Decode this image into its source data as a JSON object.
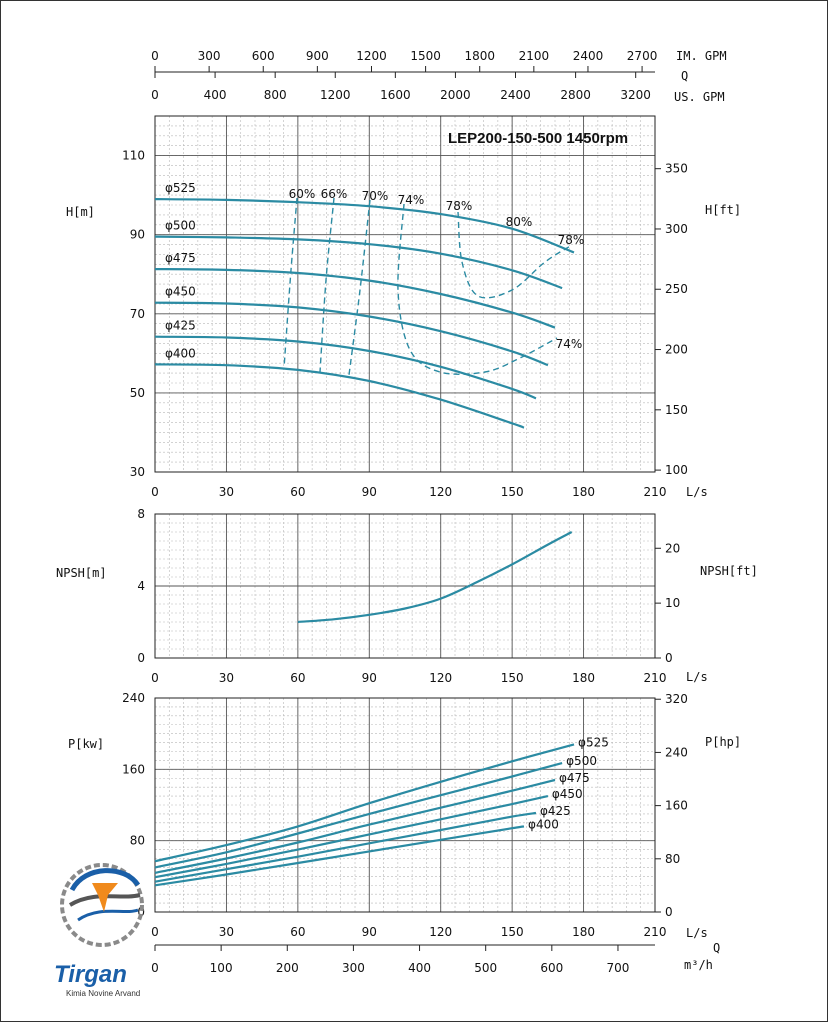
{
  "chart_data": [
    {
      "type": "line",
      "name": "head",
      "title": "LEP200-150-500 1450rpm",
      "xlabel": "L/s",
      "ylabel_left": "H[m]",
      "ylabel_right": "H[ft]",
      "xlim": [
        0,
        210
      ],
      "ylim": [
        30,
        120
      ],
      "x_ticks": [
        "0",
        "30",
        "60",
        "90",
        "120",
        "150",
        "180",
        "210"
      ],
      "y_ticks": [
        "30",
        "50",
        "70",
        "90",
        "110"
      ],
      "y2_ticks": [
        "100",
        "150",
        "200",
        "250",
        "300",
        "350"
      ],
      "top_axis_im_label": "IM. GPM",
      "top_axis_q_label": "Q",
      "top_axis_us_label": "US. GPM",
      "top_axis_im_ticks": [
        "0",
        "300",
        "600",
        "900",
        "1200",
        "1500",
        "1800",
        "2100",
        "2400",
        "2700"
      ],
      "top_axis_us_ticks": [
        "0",
        "400",
        "800",
        "1200",
        "1600",
        "2000",
        "2400",
        "2800",
        "3200"
      ],
      "series": [
        {
          "name": "φ525",
          "x": [
            0,
            30,
            60,
            90,
            120,
            150,
            176
          ],
          "y": [
            99,
            98.8,
            98.2,
            97.2,
            95.2,
            91.5,
            85.5
          ]
        },
        {
          "name": "φ500",
          "x": [
            0,
            30,
            60,
            90,
            120,
            150,
            171
          ],
          "y": [
            89.5,
            89.3,
            88.8,
            87.6,
            85.2,
            81,
            76.5
          ]
        },
        {
          "name": "φ475",
          "x": [
            0,
            30,
            60,
            90,
            120,
            150,
            168
          ],
          "y": [
            81.3,
            81.1,
            80.3,
            78.4,
            75,
            70.3,
            66.5
          ]
        },
        {
          "name": "φ450",
          "x": [
            0,
            30,
            60,
            90,
            120,
            150,
            165
          ],
          "y": [
            72.8,
            72.6,
            71.6,
            69.3,
            65.6,
            60.5,
            57
          ]
        },
        {
          "name": "φ425",
          "x": [
            0,
            30,
            60,
            90,
            120,
            150,
            160
          ],
          "y": [
            64.2,
            64,
            63,
            60.6,
            56.6,
            51,
            48.6
          ]
        },
        {
          "name": "φ400",
          "x": [
            0,
            30,
            60,
            90,
            120,
            150,
            155
          ],
          "y": [
            57.2,
            57,
            55.8,
            53,
            48.3,
            42.3,
            41.2
          ]
        }
      ],
      "efficiency_labels": [
        "60%",
        "66%",
        "70%",
        "74%",
        "78%",
        "80%",
        "78%",
        "74%"
      ]
    },
    {
      "type": "line",
      "name": "npsh",
      "xlabel": "L/s",
      "ylabel_left": "NPSH[m]",
      "ylabel_right": "NPSH[ft]",
      "xlim": [
        0,
        210
      ],
      "ylim": [
        0,
        8
      ],
      "x_ticks": [
        "0",
        "30",
        "60",
        "90",
        "120",
        "150",
        "180",
        "210"
      ],
      "y_ticks": [
        "0",
        "4",
        "8"
      ],
      "y2_ticks": [
        "0",
        "10",
        "20"
      ],
      "series": [
        {
          "name": "",
          "x": [
            60,
            75,
            90,
            105,
            120,
            135,
            150,
            165,
            175
          ],
          "y": [
            2,
            2.15,
            2.4,
            2.75,
            3.3,
            4.2,
            5.2,
            6.3,
            7
          ]
        }
      ]
    },
    {
      "type": "line",
      "name": "power",
      "xlabel": "L/s",
      "xlabel2": "m³/h",
      "q_label": "Q",
      "ylabel_left": "P[kw]",
      "ylabel_right": "P[hp]",
      "xlim": [
        0,
        210
      ],
      "ylim": [
        0,
        240
      ],
      "x_ticks": [
        "0",
        "30",
        "60",
        "90",
        "120",
        "150",
        "180",
        "210"
      ],
      "x2_ticks": [
        "0",
        "100",
        "200",
        "300",
        "400",
        "500",
        "600",
        "700"
      ],
      "y_ticks": [
        "0",
        "80",
        "160",
        "240"
      ],
      "y2_ticks": [
        "0",
        "80",
        "160",
        "240",
        "320"
      ],
      "series": [
        {
          "name": "φ525",
          "x": [
            0,
            30,
            60,
            90,
            120,
            150,
            176
          ],
          "y": [
            57,
            75,
            96,
            122,
            146,
            169,
            188
          ]
        },
        {
          "name": "φ500",
          "x": [
            0,
            30,
            60,
            90,
            120,
            150,
            171
          ],
          "y": [
            50,
            67,
            88,
            110,
            131,
            152,
            167
          ]
        },
        {
          "name": "φ475",
          "x": [
            0,
            30,
            60,
            90,
            120,
            150,
            168
          ],
          "y": [
            44,
            60,
            78,
            98,
            117,
            136,
            148
          ]
        },
        {
          "name": "φ450",
          "x": [
            0,
            30,
            60,
            90,
            120,
            150,
            165
          ],
          "y": [
            39,
            54,
            70,
            87,
            104,
            121,
            130
          ]
        },
        {
          "name": "φ425",
          "x": [
            0,
            30,
            60,
            90,
            120,
            150,
            160
          ],
          "y": [
            34,
            48,
            62,
            77,
            92,
            107,
            111
          ]
        },
        {
          "name": "φ400",
          "x": [
            0,
            30,
            60,
            90,
            120,
            150,
            155
          ],
          "y": [
            30,
            42,
            55,
            68,
            81,
            94,
            96
          ]
        }
      ]
    }
  ],
  "logo": {
    "name": "Tirgan",
    "sub": "Kimia Novine Arvand",
    "colors": [
      "#1a5fa8",
      "#f08a1c",
      "#6c6c6c"
    ]
  }
}
